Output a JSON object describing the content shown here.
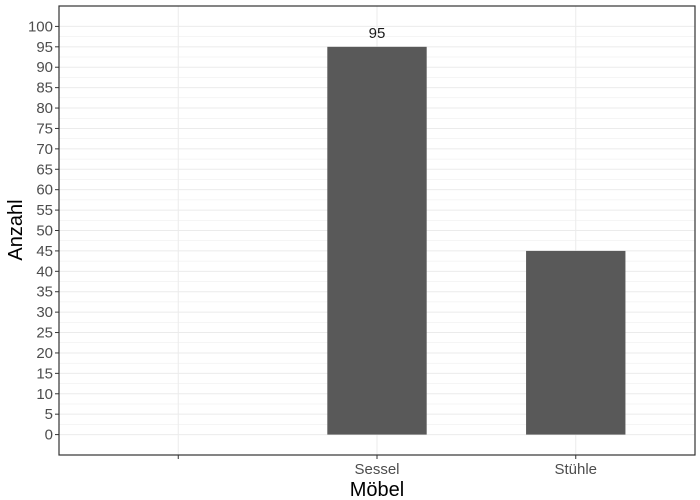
{
  "chart_data": {
    "type": "bar",
    "categories": [
      "",
      "Sessel",
      "Stühle"
    ],
    "values": [
      0,
      95,
      45
    ],
    "data_labels": [
      "",
      "95",
      ""
    ],
    "xlabel": "Möbel",
    "ylabel": "Anzahl",
    "ylim": [
      -5,
      105
    ],
    "yticks": [
      0,
      5,
      10,
      15,
      20,
      25,
      30,
      35,
      40,
      45,
      50,
      55,
      60,
      65,
      70,
      75,
      80,
      85,
      90,
      95,
      100
    ],
    "grid": true,
    "bar_color": "#595959",
    "grid_color": "#ebebeb",
    "panel_border_color": "#333333"
  }
}
